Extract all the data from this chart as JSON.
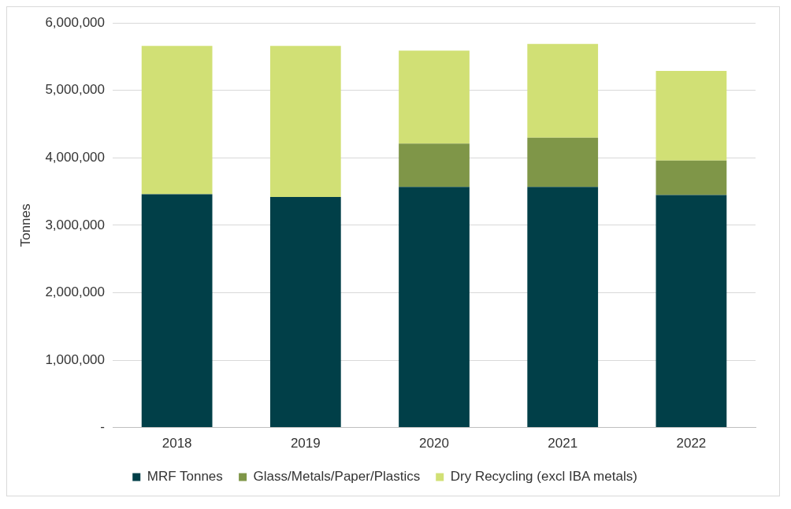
{
  "chart_data": {
    "type": "bar",
    "stacked": true,
    "ylabel": "Tonnes",
    "categories": [
      "2018",
      "2019",
      "2020",
      "2021",
      "2022"
    ],
    "series": [
      {
        "name": "MRF Tonnes",
        "color": "#013f48",
        "values": [
          3460000,
          3420000,
          3570000,
          3570000,
          3450000
        ]
      },
      {
        "name": "Glass/Metals/Paper/Plastics",
        "color": "#7f9648",
        "values": [
          null,
          null,
          640000,
          730000,
          510000
        ]
      },
      {
        "name": "Dry Recycling (excl IBA metals)",
        "color": "#d1e075",
        "values": [
          2200000,
          2240000,
          1380000,
          1390000,
          1330000
        ]
      }
    ],
    "ylim": [
      0,
      6000000
    ],
    "yticks": [
      {
        "value": 0,
        "label": "-"
      },
      {
        "value": 1000000,
        "label": "1,000,000"
      },
      {
        "value": 2000000,
        "label": "2,000,000"
      },
      {
        "value": 3000000,
        "label": "3,000,000"
      },
      {
        "value": 4000000,
        "label": "4,000,000"
      },
      {
        "value": 5000000,
        "label": "5,000,000"
      },
      {
        "value": 6000000,
        "label": "6,000,000"
      }
    ],
    "grid": "y",
    "legend": "bottom"
  }
}
